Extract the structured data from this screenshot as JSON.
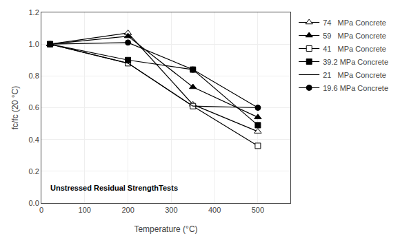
{
  "chart_data": {
    "type": "line",
    "x": [
      20,
      200,
      350,
      500
    ],
    "series": [
      {
        "name": "74   MPa Concrete",
        "marker": "triangle_open",
        "color": "#000000",
        "values": [
          1.0,
          1.07,
          0.62,
          0.45
        ]
      },
      {
        "name": "59   MPa Concrete",
        "marker": "triangle_filled",
        "color": "#000000",
        "values": [
          1.0,
          1.05,
          0.73,
          0.54
        ]
      },
      {
        "name": "41   MPa Concrete",
        "marker": "square_open",
        "color": "#000000",
        "values": [
          1.0,
          0.88,
          0.61,
          0.36
        ]
      },
      {
        "name": "39.2 MPa Concrete",
        "marker": "square_filled",
        "color": "#000000",
        "values": [
          1.0,
          0.9,
          0.84,
          0.49
        ]
      },
      {
        "name": "21   MPa Concrete",
        "marker": "none",
        "color": "#000000",
        "values": [
          1.0,
          0.88,
          0.61,
          0.6
        ]
      },
      {
        "name": "19.6 MPa Concrete",
        "marker": "circle_filled",
        "color": "#000000",
        "values": [
          1.0,
          1.01,
          0.84,
          0.6
        ]
      }
    ],
    "xlabel": "Temperature (°C)",
    "ylabel": "fc/fc (20 °C)",
    "xlim": [
      0,
      575
    ],
    "ylim": [
      0,
      1.2
    ],
    "xticks": [
      0,
      100,
      200,
      300,
      400,
      500
    ],
    "yticks": [
      {
        "value": 0,
        "label": "0.0"
      },
      0.2,
      0.4,
      0.6,
      0.8,
      {
        "value": 1.0,
        "label": "1.0"
      },
      1.2
    ],
    "annotation": "Unstressed Residual StrengthTests",
    "grid": true,
    "legend": "right"
  }
}
